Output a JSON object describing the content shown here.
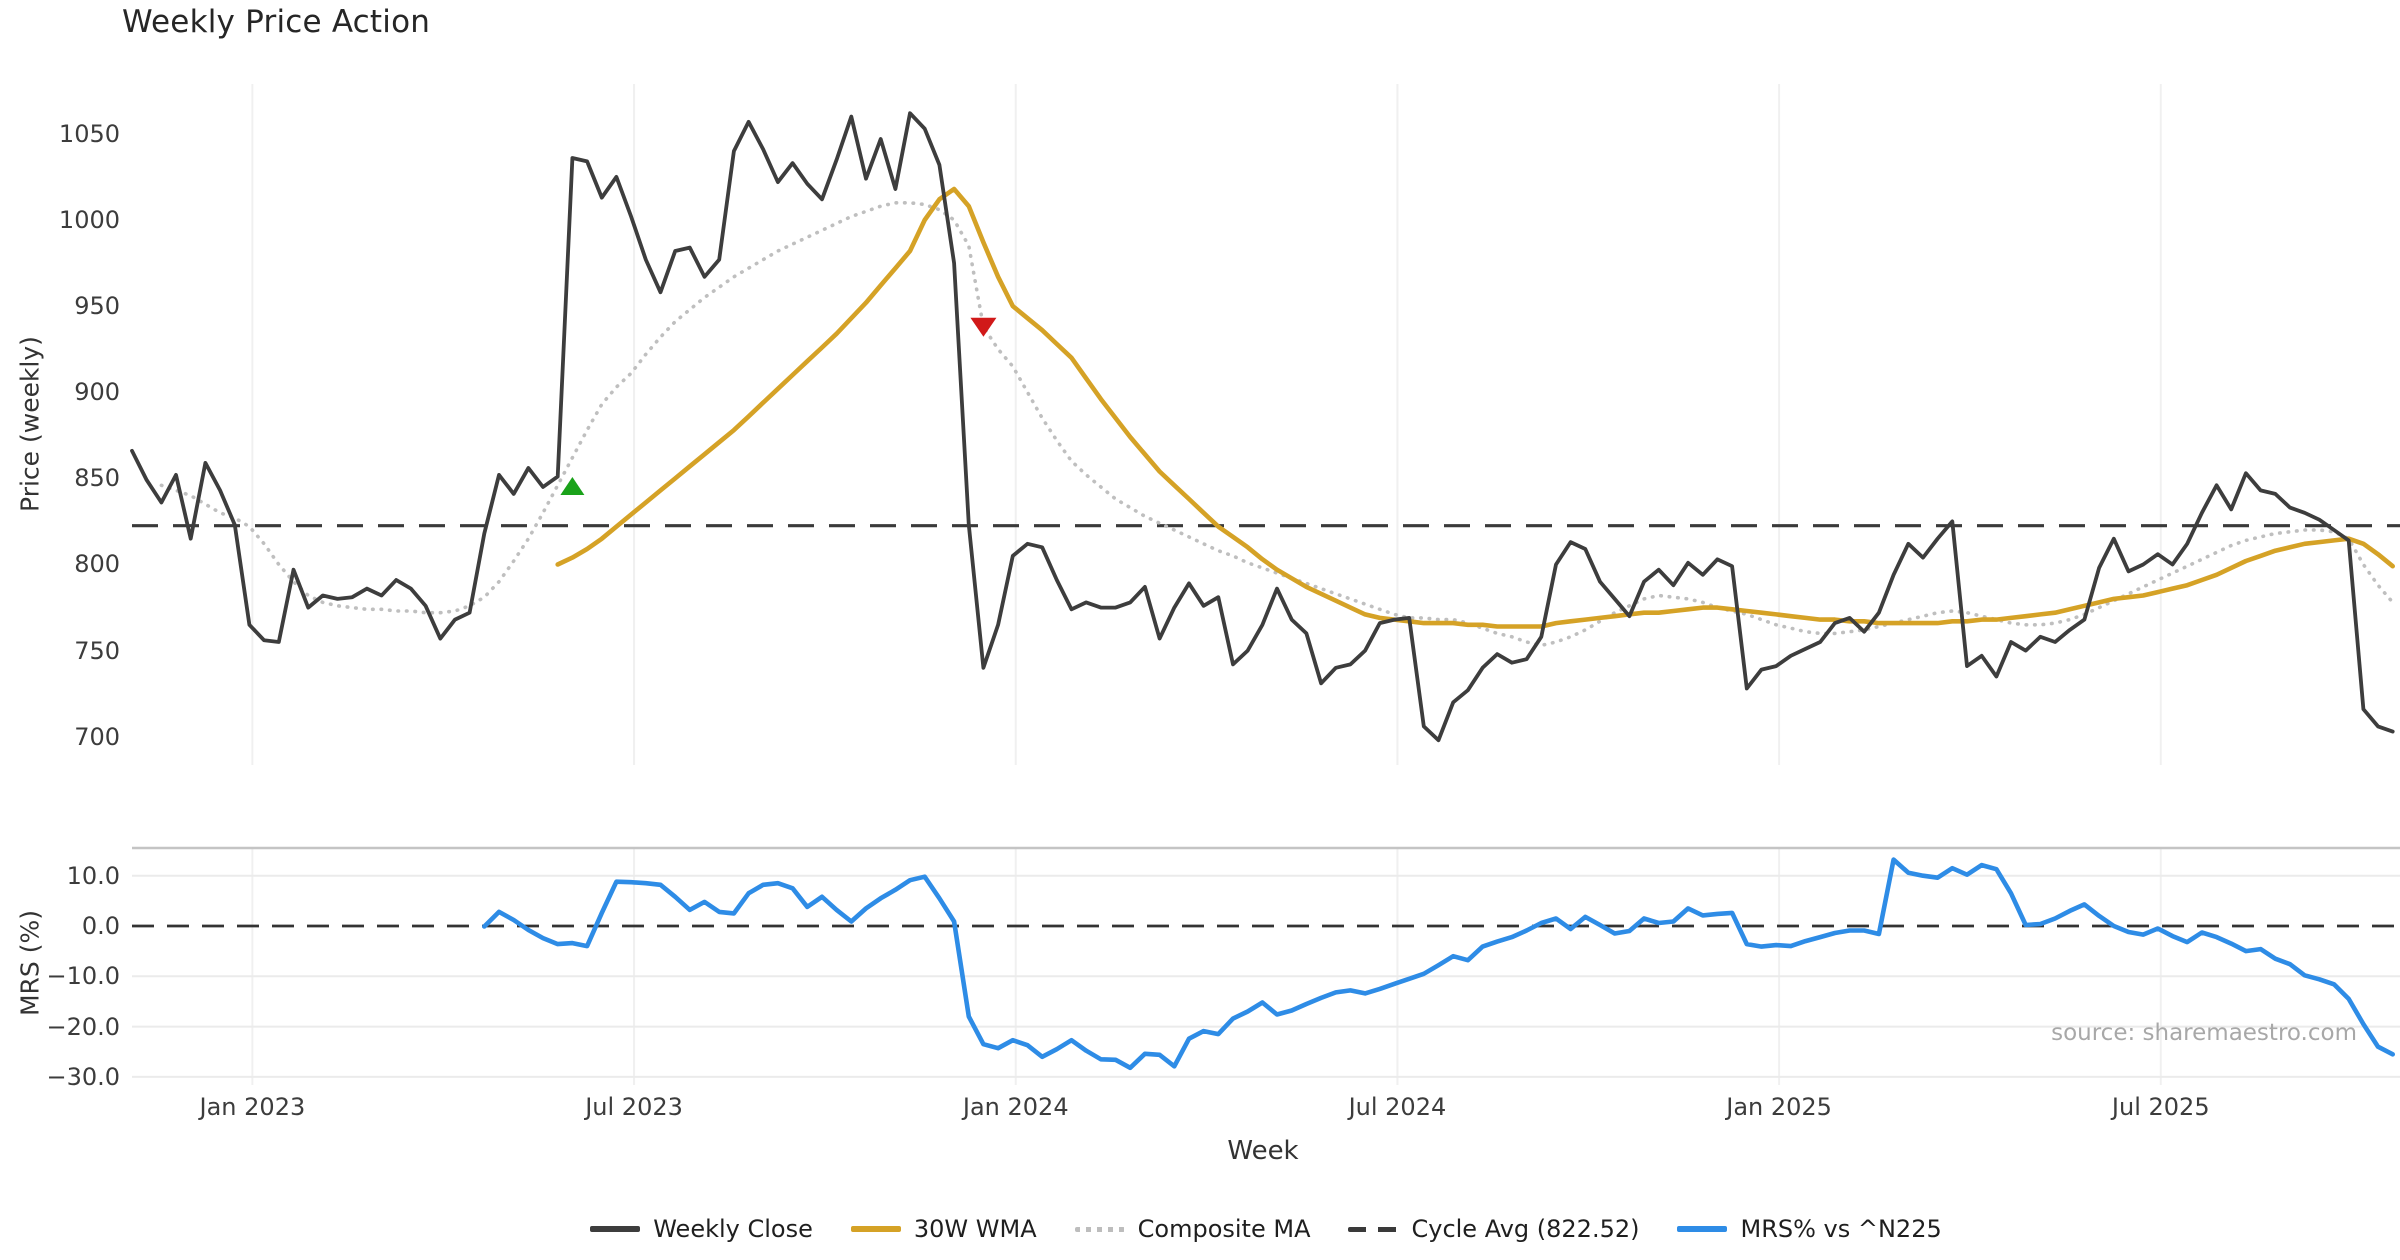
{
  "title": "Weekly Price Action",
  "source_note": "source: sharemaestro.com",
  "axes": {
    "price_ylabel": "Price (weekly)",
    "mrs_ylabel": "MRS (%)",
    "xlabel": "Week"
  },
  "legend": {
    "items": [
      {
        "label": "Weekly Close",
        "color": "#3d3d3d",
        "style": "solid"
      },
      {
        "label": "30W WMA",
        "color": "#d5a226",
        "style": "solid"
      },
      {
        "label": "Composite MA",
        "color": "#bdbdbd",
        "style": "dotted"
      },
      {
        "label": "Cycle Avg (822.52)",
        "color": "#3a3a3a",
        "style": "dashed"
      },
      {
        "label": "MRS% vs ^N225",
        "color": "#2e8ce6",
        "style": "solid"
      }
    ]
  },
  "chart_data": [
    {
      "type": "line",
      "panel": "price",
      "title": "Weekly Price Action",
      "ylabel": "Price (weekly)",
      "ylim": [
        684,
        1079
      ],
      "grid": "vertical-only",
      "yticks": [
        {
          "v": 1050,
          "label": "1050"
        },
        {
          "v": 1000,
          "label": "1000"
        },
        {
          "v": 950,
          "label": "950"
        },
        {
          "v": 900,
          "label": "900"
        },
        {
          "v": 850,
          "label": "850"
        },
        {
          "v": 800,
          "label": "800"
        },
        {
          "v": 750,
          "label": "750"
        },
        {
          "v": 700,
          "label": "700"
        }
      ],
      "xticks": [
        {
          "week": 8.2,
          "label": "Jan 2023"
        },
        {
          "week": 34.2,
          "label": "Jul 2023"
        },
        {
          "week": 60.2,
          "label": "Jan 2024"
        },
        {
          "week": 86.2,
          "label": "Jul 2024"
        },
        {
          "week": 112.2,
          "label": "Jan 2025"
        },
        {
          "week": 138.2,
          "label": "Jul 2025"
        }
      ],
      "cycle_avg": 822.52,
      "series": [
        {
          "name": "Composite MA",
          "color": "#bfbfbf",
          "style": "dotted",
          "width": 3.6,
          "start_week": 2,
          "values": [
            846,
            843,
            840,
            835,
            830,
            827,
            822,
            812,
            800,
            790,
            782,
            778,
            776,
            775,
            774,
            774,
            773,
            773,
            772,
            772,
            773,
            776,
            781,
            790,
            802,
            815,
            830,
            846,
            862,
            878,
            893,
            903,
            911,
            922,
            932,
            941,
            948,
            955,
            961,
            967,
            972,
            977,
            982,
            986,
            990,
            994,
            998,
            1002,
            1005,
            1008,
            1010,
            1010,
            1009,
            1006,
            1000,
            985,
            938,
            925,
            915,
            900,
            885,
            872,
            860,
            852,
            845,
            838,
            833,
            828,
            824,
            820,
            816,
            812,
            808,
            805,
            801,
            798,
            795,
            792,
            789,
            786,
            783,
            780,
            777,
            774,
            771,
            769,
            769,
            768,
            768,
            766,
            763,
            760,
            758,
            755,
            753,
            755,
            758,
            762,
            767,
            772,
            776,
            780,
            782,
            781,
            780,
            778,
            775,
            773,
            771,
            768,
            765,
            763,
            761,
            760,
            760,
            761,
            762,
            764,
            766,
            768,
            770,
            772,
            773,
            772,
            770,
            768,
            766,
            765,
            765,
            766,
            768,
            771,
            775,
            779,
            783,
            787,
            791,
            795,
            799,
            803,
            807,
            811,
            814,
            816,
            818,
            819,
            820,
            820,
            819,
            815,
            800,
            788,
            778
          ]
        },
        {
          "name": "30W WMA",
          "color": "#d5a226",
          "style": "solid",
          "width": 4.6,
          "start_week": 29,
          "values": [
            800,
            804,
            809,
            815,
            822,
            829,
            836,
            843,
            850,
            857,
            864,
            871,
            878,
            886,
            894,
            902,
            910,
            918,
            926,
            934,
            943,
            952,
            962,
            972,
            982,
            1000,
            1012,
            1018,
            1008,
            987,
            967,
            950,
            943,
            936,
            928,
            920,
            908,
            896,
            885,
            874,
            864,
            854,
            846,
            838,
            830,
            822,
            816,
            810,
            803,
            797,
            792,
            787,
            783,
            779,
            775,
            771,
            769,
            768,
            767,
            766,
            766,
            766,
            765,
            765,
            764,
            764,
            764,
            764,
            766,
            767,
            768,
            769,
            770,
            771,
            772,
            772,
            773,
            774,
            775,
            775,
            774,
            773,
            772,
            771,
            770,
            769,
            768,
            768,
            767,
            767,
            766,
            766,
            766,
            766,
            766,
            767,
            767,
            768,
            768,
            769,
            770,
            771,
            772,
            774,
            776,
            778,
            780,
            781,
            782,
            784,
            786,
            788,
            791,
            794,
            798,
            802,
            805,
            808,
            810,
            812,
            813,
            814,
            815,
            812,
            806,
            799
          ]
        },
        {
          "name": "Weekly Close",
          "color": "#3d3d3d",
          "style": "solid",
          "width": 3.8,
          "start_week": 0,
          "values": [
            866,
            849,
            836,
            852,
            815,
            859,
            843,
            823,
            765,
            756,
            755,
            797,
            775,
            782,
            780,
            781,
            786,
            782,
            791,
            786,
            776,
            757,
            768,
            772,
            818,
            852,
            841,
            856,
            845,
            851,
            1036,
            1034,
            1013,
            1025,
            1002,
            977,
            958,
            982,
            984,
            967,
            977,
            1040,
            1057,
            1041,
            1022,
            1033,
            1021,
            1012,
            1035,
            1060,
            1024,
            1047,
            1018,
            1062,
            1053,
            1032,
            975,
            823,
            740,
            765,
            805,
            812,
            810,
            791,
            774,
            778,
            775,
            775,
            778,
            787,
            757,
            775,
            789,
            776,
            781,
            742,
            750,
            765,
            786,
            768,
            760,
            731,
            740,
            742,
            750,
            766,
            768,
            769,
            706,
            698,
            720,
            727,
            740,
            748,
            743,
            745,
            758,
            800,
            813,
            809,
            790,
            780,
            770,
            790,
            797,
            788,
            801,
            794,
            803,
            799,
            728,
            739,
            741,
            747,
            751,
            755,
            766,
            769,
            761,
            772,
            794,
            812,
            804,
            815,
            825,
            741,
            747,
            735,
            755,
            750,
            758,
            755,
            762,
            768,
            798,
            815,
            796,
            800,
            806,
            800,
            812,
            830,
            846,
            832,
            853,
            843,
            841,
            833,
            830,
            826,
            820,
            814,
            716,
            706,
            703
          ]
        }
      ],
      "markers": [
        {
          "name": "buy-signal",
          "shape": "triangle-up",
          "color": "#1aa21a",
          "week": 30,
          "value": 845
        },
        {
          "name": "sell-signal",
          "shape": "triangle-down",
          "color": "#d11919",
          "week": 58,
          "value": 938
        }
      ]
    },
    {
      "type": "line",
      "panel": "mrs",
      "ylabel": "MRS (%)",
      "xlabel": "Week",
      "ylim": [
        -31.6,
        15.5
      ],
      "grid": "both",
      "yticks": [
        {
          "v": 10,
          "label": "10.0"
        },
        {
          "v": 0,
          "label": "0.0"
        },
        {
          "v": -10,
          "label": "−10.0"
        },
        {
          "v": -20,
          "label": "−20.0"
        },
        {
          "v": -30,
          "label": "−30.0"
        }
      ],
      "xticks": [
        {
          "week": 8.2,
          "label": "Jan 2023"
        },
        {
          "week": 34.2,
          "label": "Jul 2023"
        },
        {
          "week": 60.2,
          "label": "Jan 2024"
        },
        {
          "week": 86.2,
          "label": "Jul 2024"
        },
        {
          "week": 112.2,
          "label": "Jan 2025"
        },
        {
          "week": 138.2,
          "label": "Jul 2025"
        }
      ],
      "zero_line": 0.0,
      "series": [
        {
          "name": "MRS% vs ^N225",
          "color": "#2e8ce6",
          "style": "solid",
          "width": 4.6,
          "start_week": 24,
          "values": [
            -0.1,
            2.8,
            1.2,
            -0.8,
            -2.4,
            -3.6,
            -3.4,
            -4.0,
            2.6,
            8.8,
            8.7,
            8.5,
            8.2,
            5.8,
            3.2,
            4.8,
            2.8,
            2.5,
            6.5,
            8.2,
            8.5,
            7.5,
            3.8,
            5.8,
            3.2,
            0.9,
            3.5,
            5.5,
            7.2,
            9.1,
            9.8,
            5.5,
            0.9,
            -18.0,
            -23.5,
            -24.3,
            -22.7,
            -23.7,
            -26.0,
            -24.5,
            -22.7,
            -24.8,
            -26.5,
            -26.6,
            -28.2,
            -25.4,
            -25.6,
            -27.9,
            -22.4,
            -20.9,
            -21.5,
            -18.4,
            -17.0,
            -15.2,
            -17.6,
            -16.8,
            -15.5,
            -14.3,
            -13.2,
            -12.8,
            -13.4,
            -12.5,
            -11.5,
            -10.5,
            -9.5,
            -7.8,
            -6.0,
            -6.8,
            -4.1,
            -3.1,
            -2.2,
            -0.9,
            0.6,
            1.5,
            -0.6,
            1.8,
            0.2,
            -1.5,
            -1.0,
            1.5,
            0.6,
            0.9,
            3.5,
            2.1,
            2.4,
            2.6,
            -3.6,
            -4.1,
            -3.8,
            -4.0,
            -3.0,
            -2.2,
            -1.4,
            -0.9,
            -0.9,
            -1.6,
            13.2,
            10.6,
            10.0,
            9.6,
            11.5,
            10.2,
            12.1,
            11.3,
            6.5,
            0.2,
            0.4,
            1.5,
            3.0,
            4.3,
            2.0,
            0.0,
            -1.2,
            -1.7,
            -0.5,
            -2.0,
            -3.2,
            -1.3,
            -2.2,
            -3.5,
            -5.0,
            -4.6,
            -6.5,
            -7.6,
            -9.8,
            -10.6,
            -11.6,
            -14.5,
            -19.5,
            -24.0,
            -25.5
          ]
        }
      ]
    }
  ]
}
